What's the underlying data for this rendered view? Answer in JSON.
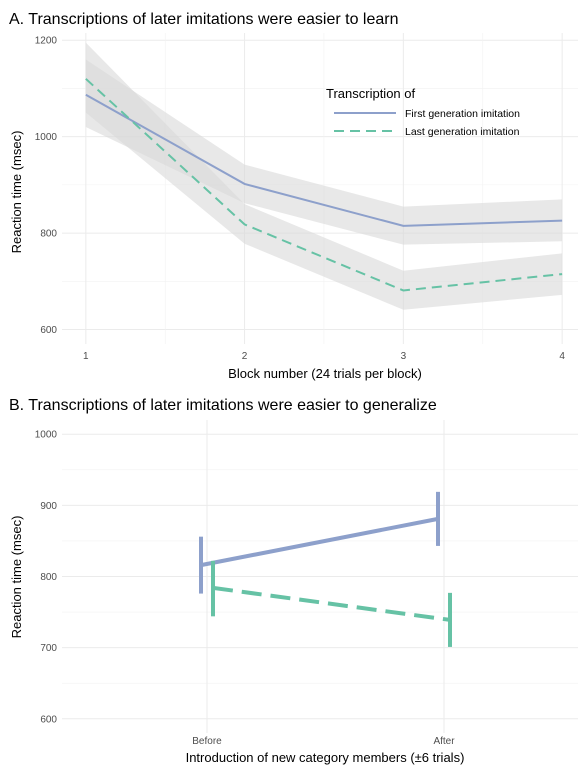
{
  "colors": {
    "first": "#8da0cb",
    "last": "#66c2a5",
    "ribbon": "#d9d9d9"
  },
  "chart_data": [
    {
      "type": "line",
      "title": "A. Transcriptions of later imitations were easier to learn",
      "xlabel": "Block number (24 trials per block)",
      "ylabel": "Reaction time (msec)",
      "x": [
        1,
        2,
        3,
        4
      ],
      "xticks": [
        "1",
        "2",
        "3",
        "4"
      ],
      "yticks": [
        "600",
        "800",
        "1000",
        "1200"
      ],
      "ylim": [
        570,
        1215
      ],
      "legend": {
        "title": "Transcription of",
        "position": "top-right",
        "entries": [
          "First generation imitation",
          "Last generation imitation"
        ]
      },
      "series": [
        {
          "name": "First generation imitation",
          "style": "solid",
          "values": [
            1087,
            902,
            815,
            826
          ],
          "lower": [
            1020,
            862,
            776,
            783
          ],
          "upper": [
            1160,
            942,
            855,
            870
          ]
        },
        {
          "name": "Last generation imitation",
          "style": "dashed",
          "values": [
            1120,
            818,
            681,
            715
          ],
          "lower": [
            1050,
            778,
            641,
            672
          ],
          "upper": [
            1195,
            860,
            722,
            758
          ]
        }
      ]
    },
    {
      "type": "line",
      "title": "B. Transcriptions of later imitations were easier to generalize",
      "xlabel": "Introduction of new category members (±6 trials)",
      "ylabel": "Reaction time (msec)",
      "categories": [
        "Before",
        "After"
      ],
      "yticks": [
        "600",
        "700",
        "800",
        "900",
        "1000"
      ],
      "ylim": [
        580,
        1020
      ],
      "series": [
        {
          "name": "First generation imitation",
          "style": "solid",
          "values": [
            816,
            881
          ],
          "lower": [
            776,
            843
          ],
          "upper": [
            856,
            919
          ]
        },
        {
          "name": "Last generation imitation",
          "style": "dashed",
          "values": [
            784,
            739
          ],
          "lower": [
            744,
            701
          ],
          "upper": [
            822,
            777
          ]
        }
      ]
    }
  ]
}
